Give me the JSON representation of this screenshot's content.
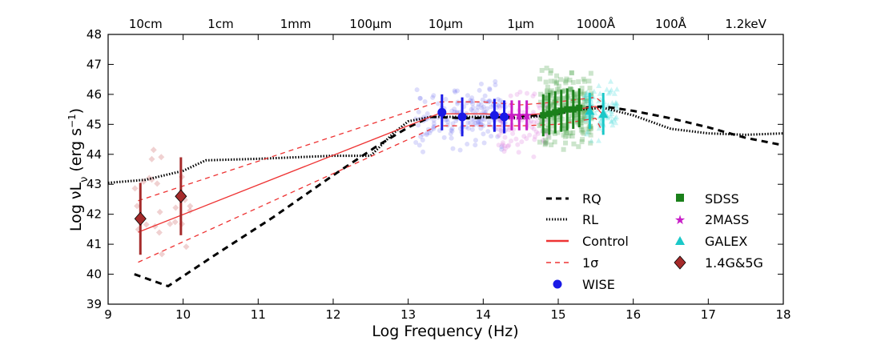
{
  "chart_data": {
    "type": "line",
    "xlabel": "Log Frequency (Hz)",
    "ylabel": "Log νLν (erg s⁻¹)",
    "ylabel_parts": {
      "main": "Log νL",
      "sub": "ν",
      "unit": " (erg s",
      "exp": "−1",
      "close": ")"
    },
    "xlim": [
      9,
      18
    ],
    "ylim": [
      39,
      48
    ],
    "x_ticks": [
      "9",
      "10",
      "11",
      "12",
      "13",
      "14",
      "15",
      "16",
      "17",
      "18"
    ],
    "y_ticks": [
      "39",
      "40",
      "41",
      "42",
      "43",
      "44",
      "45",
      "46",
      "47",
      "48"
    ],
    "top_axis": [
      {
        "x": 9.5,
        "label": "10cm"
      },
      {
        "x": 10.5,
        "label": "1cm"
      },
      {
        "x": 11.5,
        "label": "1mm"
      },
      {
        "x": 12.5,
        "label": "100μm"
      },
      {
        "x": 13.5,
        "label": "10μm"
      },
      {
        "x": 14.5,
        "label": "1μm"
      },
      {
        "x": 15.5,
        "label": "1000Å"
      },
      {
        "x": 16.5,
        "label": "100Å"
      },
      {
        "x": 17.5,
        "label": "1.2keV"
      }
    ],
    "series": [
      {
        "name": "RQ",
        "style": "dashed",
        "color": "#000000",
        "x": [
          9.35,
          9.8,
          10.4,
          11.2,
          12.0,
          12.6,
          13.0,
          13.3,
          13.8,
          14.3,
          14.7,
          15.0,
          15.3,
          15.6,
          16.0,
          16.5,
          17.0,
          17.5,
          18.0
        ],
        "y": [
          40.0,
          39.6,
          40.6,
          41.9,
          43.3,
          44.3,
          44.9,
          45.25,
          45.2,
          45.25,
          45.3,
          45.4,
          45.55,
          45.6,
          45.45,
          45.2,
          44.9,
          44.55,
          44.3
        ]
      },
      {
        "name": "RL",
        "style": "dotted",
        "color": "#000000",
        "x": [
          9.0,
          9.5,
          10.0,
          10.3,
          11.0,
          12.0,
          12.5,
          12.8,
          13.0,
          13.3,
          14.0,
          14.5,
          15.0,
          15.3,
          15.6,
          16.0,
          16.5,
          17.0,
          17.5,
          18.0
        ],
        "y": [
          43.05,
          43.15,
          43.45,
          43.8,
          43.85,
          43.95,
          43.95,
          44.7,
          45.1,
          45.25,
          45.25,
          45.2,
          45.35,
          45.5,
          45.55,
          45.3,
          44.85,
          44.7,
          44.65,
          44.7
        ]
      },
      {
        "name": "Control",
        "style": "solid",
        "color": "#ee3333",
        "x": [
          9.4,
          13.4,
          14.0,
          14.5,
          15.0,
          15.5,
          15.6
        ],
        "y": [
          41.4,
          45.35,
          45.35,
          45.3,
          45.4,
          45.6,
          45.3
        ]
      },
      {
        "name": "1σ upper",
        "style": "dashed",
        "color": "#ee3333",
        "x": [
          9.4,
          13.4,
          14.0,
          14.5,
          15.0,
          15.5,
          15.6
        ],
        "y": [
          42.45,
          45.75,
          45.75,
          45.65,
          45.75,
          45.9,
          45.7
        ]
      },
      {
        "name": "1σ lower",
        "style": "dashed",
        "color": "#ee3333",
        "x": [
          9.4,
          13.4,
          14.0,
          14.5,
          15.0,
          15.5,
          15.6
        ],
        "y": [
          40.4,
          44.95,
          44.95,
          44.95,
          45.0,
          45.2,
          44.7
        ]
      }
    ],
    "points": [
      {
        "group": "WISE",
        "marker": "circle",
        "color": "#1a1ae6",
        "x": [
          13.45,
          13.72,
          14.15,
          14.28
        ],
        "y": [
          45.4,
          45.25,
          45.3,
          45.25
        ],
        "err": [
          0.6,
          0.65,
          0.55,
          0.55
        ]
      },
      {
        "group": "2MASS",
        "marker": "star",
        "color": "#c81ec8",
        "x": [
          14.38,
          14.48,
          14.58
        ],
        "y": [
          45.3,
          45.3,
          45.3
        ],
        "err": [
          0.5,
          0.5,
          0.5
        ]
      },
      {
        "group": "SDSS",
        "marker": "square",
        "color": "#1a801a",
        "x": [
          14.8,
          14.88,
          14.96,
          15.04,
          15.12,
          15.2,
          15.28
        ],
        "y": [
          45.3,
          45.35,
          45.4,
          45.45,
          45.5,
          45.5,
          45.55
        ],
        "err": [
          0.7,
          0.7,
          0.7,
          0.7,
          0.7,
          0.65,
          0.65
        ]
      },
      {
        "group": "GALEX",
        "marker": "triangle",
        "color": "#1ac8c8",
        "x": [
          15.42,
          15.6
        ],
        "y": [
          45.45,
          45.35
        ],
        "err": [
          0.6,
          0.7
        ]
      },
      {
        "group": "1.4G&5G",
        "marker": "diamond",
        "color": "#a52a2a",
        "x": [
          9.43,
          9.97
        ],
        "y": [
          41.85,
          42.6
        ],
        "err": [
          1.2,
          1.3
        ]
      }
    ],
    "legend": {
      "left": [
        "RQ",
        "RL",
        "Control",
        "1σ",
        "WISE"
      ],
      "right": [
        "SDSS",
        "2MASS",
        "GALEX",
        "1.4G&5G"
      ],
      "placement": "lower-right"
    }
  }
}
